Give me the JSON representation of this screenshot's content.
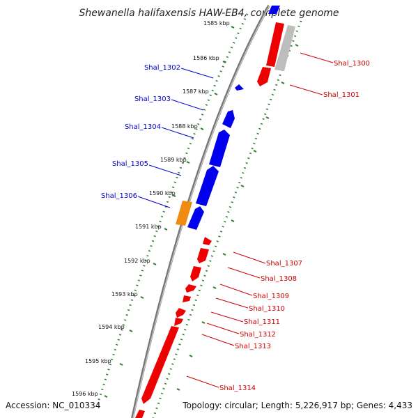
{
  "title": "Shewanella halifaxensis HAW-EB4, complete genome",
  "footer": {
    "accession": "Accession: NC_010334",
    "summary": "Topology: circular; Length: 5,226,917 bp; Genes: 4,433"
  },
  "colors": {
    "backbone_dark": "#777777",
    "backbone_light": "#cfcfcf",
    "tick": "#2a7a2a",
    "forward": "#0000ee",
    "reverse": "#ee0000",
    "other": "#f08a10",
    "pseudo": "#bdbdbd",
    "label_forward": "#0000cc",
    "label_reverse": "#cc0000"
  },
  "ticks": [
    "1585 kbp",
    "1586 kbp",
    "1587 kbp",
    "1588 kbp",
    "1589 kbp",
    "1590 kbp",
    "1591 kbp",
    "1592 kbp",
    "1593 kbp",
    "1594 kbp",
    "1595 kbp",
    "1596 kbp"
  ],
  "labels_forward": [
    "Shal_1302",
    "Shal_1303",
    "Shal_1304",
    "Shal_1305",
    "Shal_1306"
  ],
  "labels_reverse": [
    "Shal_1300",
    "Shal_1301",
    "Shal_1307",
    "Shal_1308",
    "Shal_1309",
    "Shal_1310",
    "Shal_1311",
    "Shal_1312",
    "Shal_1313",
    "Shal_1314"
  ]
}
